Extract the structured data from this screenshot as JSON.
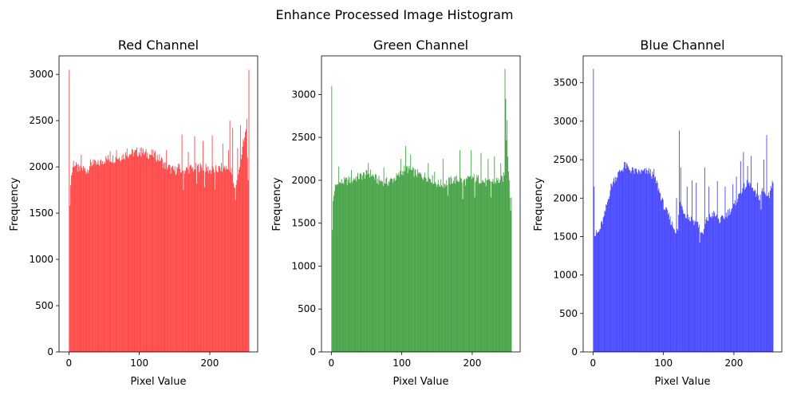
{
  "figure": {
    "title": "Enhance Processed Image Histogram"
  },
  "chart_data": [
    {
      "type": "bar",
      "title": "Red Channel",
      "xlabel": "Pixel Value",
      "ylabel": "Frequency",
      "color": "#ff0000",
      "opacity": 0.7,
      "bins": 256,
      "xlim": [
        -14,
        268
      ],
      "ylim": [
        0,
        3200
      ],
      "xticks": [
        0,
        100,
        200
      ],
      "yticks": [
        0,
        500,
        1000,
        1500,
        2000,
        2500,
        3000
      ],
      "anchors": [
        [
          0,
          3050
        ],
        [
          1,
          1580
        ],
        [
          2,
          1850
        ],
        [
          4,
          1950
        ],
        [
          6,
          2050
        ],
        [
          10,
          2000
        ],
        [
          15,
          1960
        ],
        [
          20,
          1980
        ],
        [
          25,
          1960
        ],
        [
          30,
          2030
        ],
        [
          40,
          2020
        ],
        [
          50,
          2080
        ],
        [
          60,
          2090
        ],
        [
          70,
          2100
        ],
        [
          80,
          2130
        ],
        [
          90,
          2150
        ],
        [
          100,
          2160
        ],
        [
          110,
          2140
        ],
        [
          120,
          2130
        ],
        [
          130,
          2080
        ],
        [
          135,
          2020
        ],
        [
          140,
          2000
        ],
        [
          145,
          1970
        ],
        [
          150,
          1960
        ],
        [
          155,
          1990
        ],
        [
          160,
          1950
        ],
        [
          170,
          1980
        ],
        [
          180,
          1990
        ],
        [
          190,
          2000
        ],
        [
          200,
          1960
        ],
        [
          210,
          1970
        ],
        [
          220,
          2000
        ],
        [
          230,
          1950
        ],
        [
          235,
          1760
        ],
        [
          240,
          1900
        ],
        [
          245,
          2150
        ],
        [
          250,
          2350
        ],
        [
          252,
          2500
        ],
        [
          254,
          1800
        ],
        [
          255,
          3050
        ]
      ],
      "spikes": [
        [
          17,
          2130
        ],
        [
          34,
          2080
        ],
        [
          58,
          2170
        ],
        [
          67,
          2180
        ],
        [
          82,
          2200
        ],
        [
          96,
          2210
        ],
        [
          103,
          2210
        ],
        [
          117,
          2190
        ],
        [
          138,
          2180
        ],
        [
          160,
          2350
        ],
        [
          162,
          1750
        ],
        [
          169,
          2160
        ],
        [
          178,
          2330
        ],
        [
          181,
          1820
        ],
        [
          190,
          2280
        ],
        [
          192,
          1780
        ],
        [
          203,
          2340
        ],
        [
          207,
          1760
        ],
        [
          218,
          2250
        ],
        [
          226,
          2180
        ],
        [
          228,
          2500
        ],
        [
          232,
          2420
        ],
        [
          236,
          1640
        ],
        [
          239,
          2200
        ],
        [
          243,
          2450
        ],
        [
          247,
          2300
        ]
      ]
    },
    {
      "type": "bar",
      "title": "Green Channel",
      "xlabel": "Pixel Value",
      "ylabel": "Frequency",
      "color": "#008000",
      "opacity": 0.7,
      "bins": 256,
      "xlim": [
        -14,
        268
      ],
      "ylim": [
        0,
        3450
      ],
      "xticks": [
        0,
        100,
        200
      ],
      "yticks": [
        0,
        500,
        1000,
        1500,
        2000,
        2500,
        3000
      ],
      "anchors": [
        [
          0,
          3100
        ],
        [
          1,
          1420
        ],
        [
          2,
          1750
        ],
        [
          4,
          1900
        ],
        [
          8,
          1950
        ],
        [
          15,
          1980
        ],
        [
          25,
          2000
        ],
        [
          35,
          2030
        ],
        [
          45,
          2060
        ],
        [
          55,
          2080
        ],
        [
          65,
          2000
        ],
        [
          80,
          1980
        ],
        [
          95,
          2050
        ],
        [
          105,
          2150
        ],
        [
          110,
          2120
        ],
        [
          120,
          2080
        ],
        [
          130,
          2050
        ],
        [
          140,
          2030
        ],
        [
          150,
          1960
        ],
        [
          160,
          1960
        ],
        [
          170,
          2000
        ],
        [
          180,
          2010
        ],
        [
          190,
          1990
        ],
        [
          200,
          2030
        ],
        [
          210,
          2010
        ],
        [
          220,
          1970
        ],
        [
          230,
          1990
        ],
        [
          240,
          2000
        ],
        [
          245,
          2050
        ],
        [
          248,
          2500
        ],
        [
          250,
          2300
        ],
        [
          252,
          2000
        ],
        [
          254,
          1650
        ],
        [
          255,
          1800
        ]
      ],
      "spikes": [
        [
          10,
          2160
        ],
        [
          28,
          2120
        ],
        [
          52,
          2200
        ],
        [
          74,
          2150
        ],
        [
          98,
          2250
        ],
        [
          105,
          2400
        ],
        [
          112,
          2300
        ],
        [
          137,
          2200
        ],
        [
          146,
          2100
        ],
        [
          158,
          2250
        ],
        [
          165,
          1820
        ],
        [
          182,
          2350
        ],
        [
          186,
          1780
        ],
        [
          198,
          2350
        ],
        [
          203,
          1800
        ],
        [
          212,
          2320
        ],
        [
          222,
          2250
        ],
        [
          226,
          1800
        ],
        [
          231,
          2280
        ],
        [
          240,
          2200
        ],
        [
          246,
          3300
        ],
        [
          247,
          2950
        ],
        [
          249,
          2700
        ]
      ]
    },
    {
      "type": "bar",
      "title": "Blue Channel",
      "xlabel": "Pixel Value",
      "ylabel": "Frequency",
      "color": "#0000ff",
      "opacity": 0.7,
      "bins": 256,
      "xlim": [
        -14,
        268
      ],
      "ylim": [
        0,
        3850
      ],
      "xticks": [
        0,
        100,
        200
      ],
      "yticks": [
        0,
        500,
        1000,
        1500,
        2000,
        2500,
        3000,
        3500
      ],
      "anchors": [
        [
          0,
          3680
        ],
        [
          1,
          2150
        ],
        [
          2,
          1520
        ],
        [
          8,
          1560
        ],
        [
          15,
          1750
        ],
        [
          20,
          1950
        ],
        [
          25,
          2150
        ],
        [
          30,
          2250
        ],
        [
          40,
          2370
        ],
        [
          45,
          2420
        ],
        [
          50,
          2380
        ],
        [
          60,
          2340
        ],
        [
          70,
          2340
        ],
        [
          80,
          2350
        ],
        [
          90,
          2200
        ],
        [
          100,
          1900
        ],
        [
          110,
          1700
        ],
        [
          115,
          1600
        ],
        [
          120,
          1560
        ],
        [
          122,
          2000
        ],
        [
          125,
          1900
        ],
        [
          130,
          1800
        ],
        [
          140,
          1720
        ],
        [
          150,
          1650
        ],
        [
          155,
          1500
        ],
        [
          160,
          1700
        ],
        [
          170,
          1800
        ],
        [
          180,
          1700
        ],
        [
          190,
          1800
        ],
        [
          200,
          1900
        ],
        [
          210,
          2100
        ],
        [
          220,
          2200
        ],
        [
          230,
          2050
        ],
        [
          235,
          2000
        ],
        [
          240,
          2100
        ],
        [
          245,
          2050
        ],
        [
          250,
          2080
        ],
        [
          255,
          2200
        ]
      ],
      "spikes": [
        [
          44,
          2470
        ],
        [
          48,
          2440
        ],
        [
          55,
          2400
        ],
        [
          86,
          2380
        ],
        [
          118,
          2000
        ],
        [
          122,
          2880
        ],
        [
          124,
          2400
        ],
        [
          133,
          2150
        ],
        [
          137,
          1700
        ],
        [
          140,
          2230
        ],
        [
          146,
          2200
        ],
        [
          151,
          1420
        ],
        [
          158,
          2400
        ],
        [
          164,
          2150
        ],
        [
          176,
          2220
        ],
        [
          187,
          2150
        ],
        [
          198,
          2180
        ],
        [
          203,
          2280
        ],
        [
          209,
          2480
        ],
        [
          213,
          2600
        ],
        [
          219,
          2420
        ],
        [
          224,
          2550
        ],
        [
          233,
          2200
        ],
        [
          238,
          1850
        ],
        [
          242,
          2500
        ],
        [
          246,
          2820
        ],
        [
          250,
          2000
        ]
      ]
    }
  ]
}
